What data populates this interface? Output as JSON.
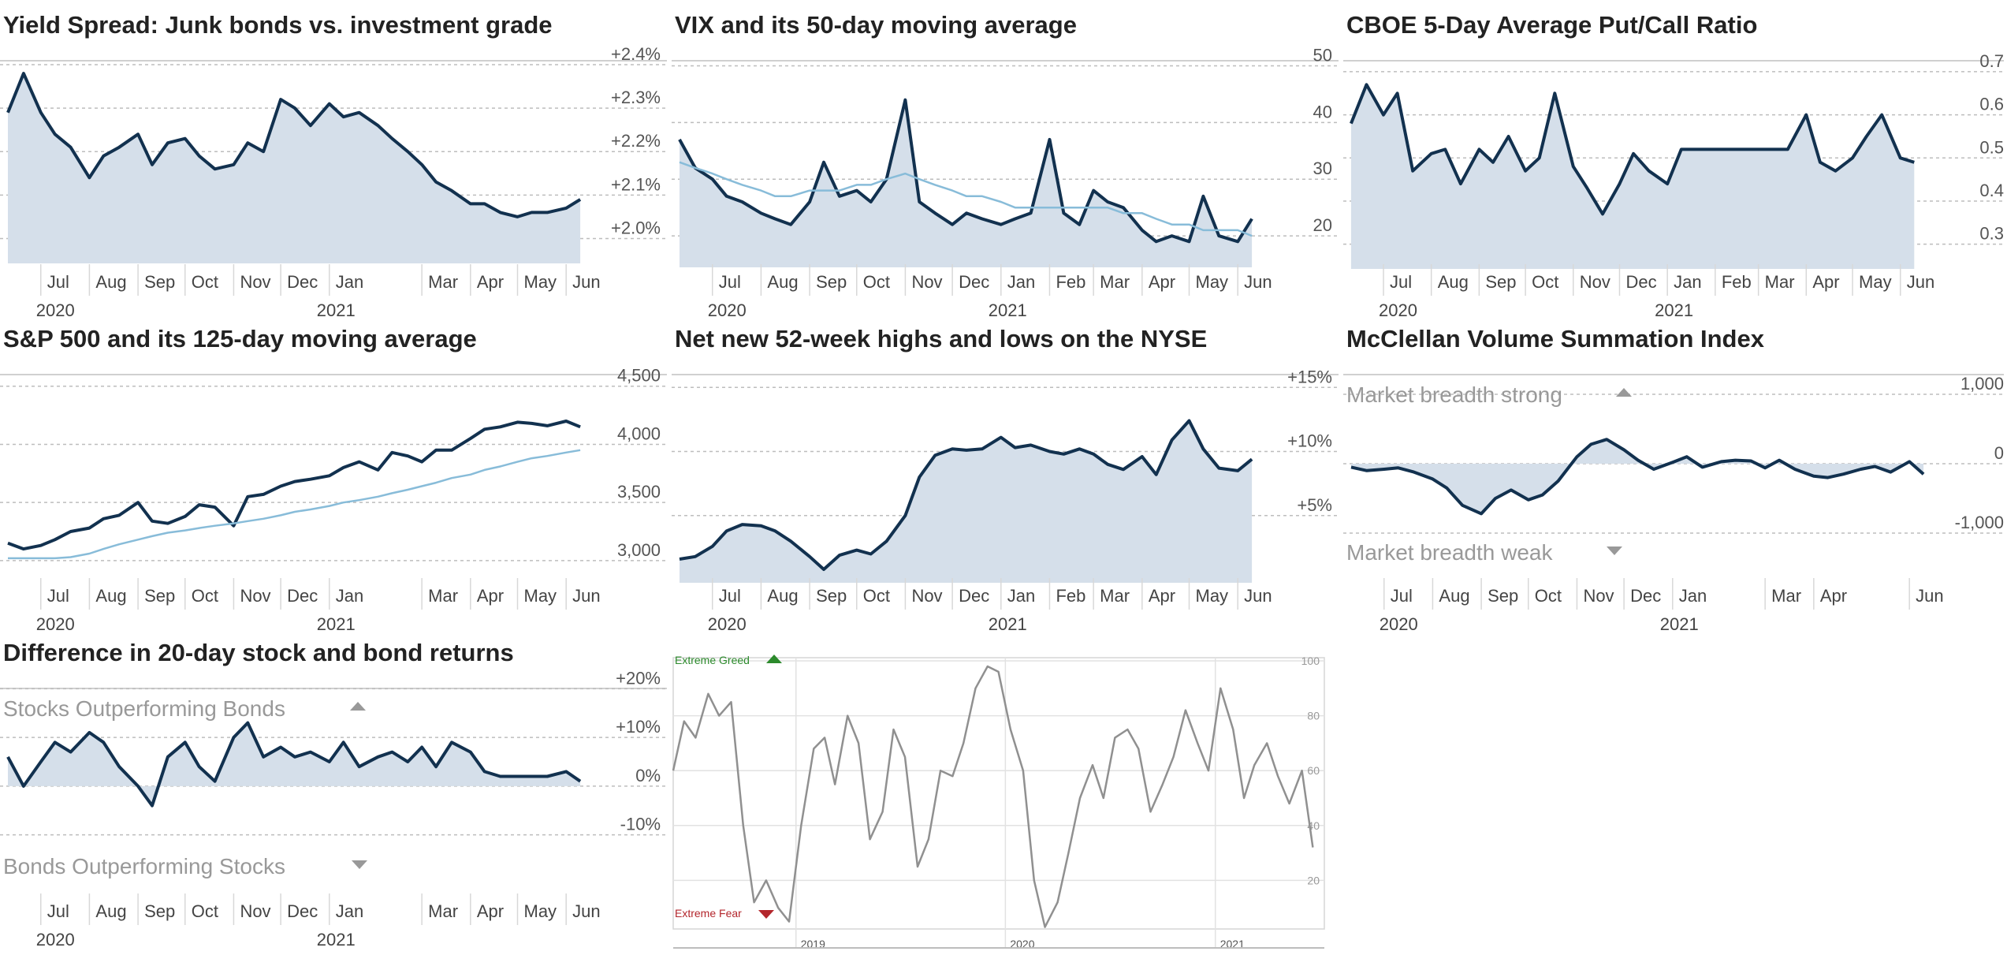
{
  "colors": {
    "line": "#12314f",
    "fill": "#d5dfea",
    "ma": "#88bcd9",
    "fg_line": "#909090",
    "greed": "#2c8a2c",
    "fear": "#b3262c",
    "grid": "#c8c8c8"
  },
  "chart_data": [
    {
      "id": "junk",
      "type": "area",
      "title": "Yield Spread: Junk bonds vs. investment grade",
      "yticks": [
        "+2.4%",
        "+2.3%",
        "+2.2%",
        "+2.1%",
        "+2.0%"
      ],
      "ylim": [
        1.95,
        2.44
      ],
      "xticks": [
        "Jul",
        "Aug",
        "Sep",
        "Oct",
        "Nov",
        "Dec",
        "Jan",
        "Mar",
        "Apr",
        "May",
        "Jun"
      ],
      "year_labels": [
        "2020",
        "2021"
      ],
      "x": [
        "2020-06-10",
        "2020-06-20",
        "2020-07-01",
        "2020-07-10",
        "2020-07-20",
        "2020-08-01",
        "2020-08-10",
        "2020-08-20",
        "2020-09-01",
        "2020-09-10",
        "2020-09-20",
        "2020-10-01",
        "2020-10-10",
        "2020-10-20",
        "2020-11-01",
        "2020-11-10",
        "2020-11-20",
        "2020-12-01",
        "2020-12-10",
        "2020-12-20",
        "2021-01-01",
        "2021-01-10",
        "2021-01-20",
        "2021-02-01",
        "2021-02-10",
        "2021-02-20",
        "2021-03-01",
        "2021-03-10",
        "2021-03-20",
        "2021-04-01",
        "2021-04-10",
        "2021-04-20",
        "2021-05-01",
        "2021-05-10",
        "2021-05-20",
        "2021-06-01",
        "2021-06-10"
      ],
      "values": [
        2.29,
        2.38,
        2.29,
        2.24,
        2.21,
        2.14,
        2.19,
        2.21,
        2.24,
        2.17,
        2.22,
        2.23,
        2.19,
        2.16,
        2.17,
        2.22,
        2.2,
        2.32,
        2.3,
        2.26,
        2.31,
        2.28,
        2.29,
        2.26,
        2.23,
        2.2,
        2.17,
        2.13,
        2.11,
        2.08,
        2.08,
        2.06,
        2.05,
        2.06,
        2.06,
        2.07,
        2.09
      ]
    },
    {
      "id": "vix",
      "type": "line",
      "title": "VIX and its 50-day moving average",
      "yticks": [
        "50",
        "40",
        "30",
        "20"
      ],
      "ylim": [
        15,
        53
      ],
      "xticks": [
        "Jul",
        "Aug",
        "Sep",
        "Oct",
        "Nov",
        "Dec",
        "Jan",
        "Feb",
        "Mar",
        "Apr",
        "May",
        "Jun"
      ],
      "year_labels": [
        "2020",
        "2021"
      ],
      "x": [
        "2020-06-10",
        "2020-06-20",
        "2020-07-01",
        "2020-07-10",
        "2020-07-20",
        "2020-08-01",
        "2020-08-10",
        "2020-08-20",
        "2020-09-01",
        "2020-09-10",
        "2020-09-20",
        "2020-10-01",
        "2020-10-10",
        "2020-10-20",
        "2020-11-01",
        "2020-11-10",
        "2020-11-20",
        "2020-12-01",
        "2020-12-10",
        "2020-12-20",
        "2021-01-01",
        "2021-01-10",
        "2021-01-20",
        "2021-02-01",
        "2021-02-10",
        "2021-02-20",
        "2021-03-01",
        "2021-03-10",
        "2021-03-20",
        "2021-04-01",
        "2021-04-10",
        "2021-04-20",
        "2021-05-01",
        "2021-05-10",
        "2021-05-20",
        "2021-06-01",
        "2021-06-10"
      ],
      "series": [
        {
          "values": [
            37,
            32,
            30,
            27,
            26,
            24,
            23,
            22,
            26,
            33,
            27,
            28,
            26,
            30,
            44,
            26,
            24,
            22,
            24,
            23,
            22,
            23,
            24,
            37,
            24,
            22,
            28,
            26,
            25,
            21,
            19,
            20,
            19,
            27,
            20,
            19,
            23
          ]
        },
        {
          "values": [
            33,
            32,
            31,
            30,
            29,
            28,
            27,
            27,
            28,
            28,
            28,
            29,
            29,
            30,
            31,
            30,
            29,
            28,
            27,
            27,
            26,
            25,
            25,
            25,
            25,
            25,
            25,
            25,
            24,
            24,
            23,
            22,
            22,
            21,
            21,
            21,
            20
          ]
        }
      ]
    },
    {
      "id": "putcall",
      "type": "area",
      "title": "CBOE 5-Day Average Put/Call Ratio",
      "yticks": [
        "0.7",
        "0.6",
        "0.5",
        "0.4",
        "0.3"
      ],
      "ylim": [
        0.25,
        0.72
      ],
      "xticks": [
        "Jul",
        "Aug",
        "Sep",
        "Oct",
        "Nov",
        "Dec",
        "Jan",
        "Feb",
        "Mar",
        "Apr",
        "May",
        "Jun"
      ],
      "year_labels": [
        "2020",
        "2021"
      ],
      "x": [
        "2020-06-10",
        "2020-06-20",
        "2020-07-01",
        "2020-07-10",
        "2020-07-20",
        "2020-08-01",
        "2020-08-10",
        "2020-08-20",
        "2020-09-01",
        "2020-09-10",
        "2020-09-20",
        "2020-10-01",
        "2020-10-10",
        "2020-10-20",
        "2020-11-01",
        "2020-11-10",
        "2020-11-20",
        "2020-12-01",
        "2020-12-10",
        "2020-12-20",
        "2021-01-01",
        "2021-01-10",
        "2021-01-20",
        "2021-02-01",
        "2021-02-10",
        "2021-02-20",
        "2021-03-01",
        "2021-03-10",
        "2021-03-20",
        "2021-04-01",
        "2021-04-10",
        "2021-04-20",
        "2021-05-01",
        "2021-05-10",
        "2021-05-20",
        "2021-06-01",
        "2021-06-10"
      ],
      "values": [
        0.58,
        0.67,
        0.6,
        0.65,
        0.47,
        0.51,
        0.52,
        0.44,
        0.52,
        0.49,
        0.55,
        0.47,
        0.5,
        0.65,
        0.48,
        0.43,
        0.37,
        0.44,
        0.51,
        0.47,
        0.44,
        0.52,
        0.52,
        0.52,
        0.52,
        0.52,
        0.52,
        0.52,
        0.52,
        0.6,
        0.49,
        0.47,
        0.5,
        0.55,
        0.6,
        0.5,
        0.49
      ]
    },
    {
      "id": "sp500",
      "type": "line",
      "title": "S&P 500 and its 125-day moving average",
      "yticks": [
        "4,500",
        "4,000",
        "3,500",
        "3,000"
      ],
      "ylim": [
        2850,
        4600
      ],
      "xticks": [
        "Jul",
        "Aug",
        "Sep",
        "Oct",
        "Nov",
        "Dec",
        "Jan",
        "Mar",
        "Apr",
        "May",
        "Jun"
      ],
      "year_labels": [
        "2020",
        "2021"
      ],
      "x": [
        "2020-06-10",
        "2020-06-20",
        "2020-07-01",
        "2020-07-10",
        "2020-07-20",
        "2020-08-01",
        "2020-08-10",
        "2020-08-20",
        "2020-09-01",
        "2020-09-10",
        "2020-09-20",
        "2020-10-01",
        "2020-10-10",
        "2020-10-20",
        "2020-11-01",
        "2020-11-10",
        "2020-11-20",
        "2020-12-01",
        "2020-12-10",
        "2020-12-20",
        "2021-01-01",
        "2021-01-10",
        "2021-01-20",
        "2021-02-01",
        "2021-02-10",
        "2021-02-20",
        "2021-03-01",
        "2021-03-10",
        "2021-03-20",
        "2021-04-01",
        "2021-04-10",
        "2021-04-20",
        "2021-05-01",
        "2021-05-10",
        "2021-05-20",
        "2021-06-01",
        "2021-06-10"
      ],
      "series": [
        {
          "values": [
            3150,
            3100,
            3130,
            3180,
            3250,
            3280,
            3360,
            3390,
            3500,
            3340,
            3320,
            3380,
            3480,
            3460,
            3300,
            3550,
            3570,
            3640,
            3680,
            3700,
            3730,
            3800,
            3850,
            3780,
            3930,
            3900,
            3850,
            3950,
            3950,
            4050,
            4130,
            4150,
            4190,
            4180,
            4160,
            4200,
            4150
          ]
        },
        {
          "values": [
            3020,
            3020,
            3020,
            3020,
            3030,
            3060,
            3100,
            3140,
            3180,
            3210,
            3240,
            3260,
            3280,
            3300,
            3320,
            3340,
            3360,
            3390,
            3420,
            3440,
            3470,
            3500,
            3520,
            3550,
            3580,
            3610,
            3640,
            3670,
            3710,
            3740,
            3780,
            3810,
            3850,
            3880,
            3900,
            3930,
            3950
          ]
        }
      ]
    },
    {
      "id": "highs_lows",
      "type": "area",
      "title": "Net new 52-week highs and lows on the NYSE",
      "yticks": [
        "+15%",
        "+10%",
        "+5%"
      ],
      "ylim": [
        0,
        16
      ],
      "xticks": [
        "Jul",
        "Aug",
        "Sep",
        "Oct",
        "Nov",
        "Dec",
        "Jan",
        "Feb",
        "Mar",
        "Apr",
        "May",
        "Jun"
      ],
      "year_labels": [
        "2020",
        "2021"
      ],
      "x": [
        "2020-06-10",
        "2020-06-20",
        "2020-07-01",
        "2020-07-10",
        "2020-07-20",
        "2020-08-01",
        "2020-08-10",
        "2020-08-20",
        "2020-09-01",
        "2020-09-10",
        "2020-09-20",
        "2020-10-01",
        "2020-10-10",
        "2020-10-20",
        "2020-11-01",
        "2020-11-10",
        "2020-11-20",
        "2020-12-01",
        "2020-12-10",
        "2020-12-20",
        "2021-01-01",
        "2021-01-10",
        "2021-01-20",
        "2021-02-01",
        "2021-02-10",
        "2021-02-20",
        "2021-03-01",
        "2021-03-10",
        "2021-03-20",
        "2021-04-01",
        "2021-04-10",
        "2021-04-20",
        "2021-05-01",
        "2021-05-10",
        "2021-05-20",
        "2021-06-01",
        "2021-06-10"
      ],
      "values": [
        1.6,
        1.8,
        2.6,
        3.8,
        4.3,
        4.2,
        3.8,
        3.0,
        1.8,
        0.8,
        1.9,
        2.3,
        2.0,
        3.0,
        5.0,
        8.0,
        9.7,
        10.2,
        10.1,
        10.2,
        11.1,
        10.3,
        10.5,
        10.0,
        9.8,
        10.2,
        9.8,
        9.0,
        8.6,
        9.6,
        8.2,
        10.9,
        12.4,
        10.2,
        8.7,
        8.5,
        9.4
      ]
    },
    {
      "id": "mcclellan",
      "type": "area",
      "title": "McClellan Volume Summation Index",
      "yticks": [
        "1,000",
        "0",
        "-1,000"
      ],
      "ylim": [
        -1250,
        1250
      ],
      "annotations": {
        "top": "Market breadth strong",
        "bottom": "Market breadth weak"
      },
      "xticks": [
        "Jul",
        "Aug",
        "Sep",
        "Oct",
        "Nov",
        "Dec",
        "Jan",
        "Mar",
        "Apr",
        "Jun"
      ],
      "year_labels": [
        "2020",
        "2021"
      ],
      "x": [
        "2020-06-10",
        "2020-06-20",
        "2020-07-01",
        "2020-07-10",
        "2020-07-20",
        "2020-08-01",
        "2020-08-10",
        "2020-08-20",
        "2020-09-01",
        "2020-09-10",
        "2020-09-20",
        "2020-10-01",
        "2020-10-10",
        "2020-10-20",
        "2020-11-01",
        "2020-11-10",
        "2020-11-20",
        "2020-12-01",
        "2020-12-10",
        "2020-12-20",
        "2021-01-01",
        "2021-01-10",
        "2021-01-20",
        "2021-02-01",
        "2021-02-10",
        "2021-02-20",
        "2021-03-01",
        "2021-03-10",
        "2021-03-20",
        "2021-04-01",
        "2021-04-10",
        "2021-04-20",
        "2021-05-01",
        "2021-05-10",
        "2021-05-20",
        "2021-06-01",
        "2021-06-10"
      ],
      "values": [
        -50,
        -100,
        -80,
        -60,
        -120,
        -220,
        -350,
        -600,
        -720,
        -500,
        -380,
        -520,
        -450,
        -250,
        100,
        280,
        350,
        200,
        50,
        -80,
        20,
        100,
        -50,
        30,
        50,
        40,
        -60,
        50,
        -80,
        -180,
        -200,
        -150,
        -80,
        -40,
        -120,
        30,
        -150
      ]
    },
    {
      "id": "stock_bond",
      "type": "area",
      "title": "Difference in 20-day stock and bond returns",
      "yticks": [
        "+20%",
        "+10%",
        "0%",
        "-10%"
      ],
      "ylim": [
        -12,
        22
      ],
      "annotations": {
        "top": "Stocks Outperforming Bonds",
        "bottom": "Bonds Outperforming Stocks"
      },
      "xticks": [
        "Jul",
        "Aug",
        "Sep",
        "Oct",
        "Nov",
        "Dec",
        "Jan",
        "Mar",
        "Apr",
        "May",
        "Jun"
      ],
      "year_labels": [
        "2020",
        "2021"
      ],
      "x": [
        "2020-06-10",
        "2020-06-20",
        "2020-07-01",
        "2020-07-10",
        "2020-07-20",
        "2020-08-01",
        "2020-08-10",
        "2020-08-20",
        "2020-09-01",
        "2020-09-10",
        "2020-09-20",
        "2020-10-01",
        "2020-10-10",
        "2020-10-20",
        "2020-11-01",
        "2020-11-10",
        "2020-11-20",
        "2020-12-01",
        "2020-12-10",
        "2020-12-20",
        "2021-01-01",
        "2021-01-10",
        "2021-01-20",
        "2021-02-01",
        "2021-02-10",
        "2021-02-20",
        "2021-03-01",
        "2021-03-10",
        "2021-03-20",
        "2021-04-01",
        "2021-04-10",
        "2021-04-20",
        "2021-05-01",
        "2021-05-10",
        "2021-05-20",
        "2021-06-01",
        "2021-06-10"
      ],
      "values": [
        6,
        0,
        5,
        9,
        7,
        11,
        9,
        4,
        0,
        -4,
        6,
        9,
        4,
        1,
        10,
        13,
        6,
        8,
        6,
        7,
        5,
        9,
        4,
        6,
        7,
        5,
        8,
        4,
        9,
        7,
        3,
        2,
        2,
        2,
        2,
        3,
        1
      ]
    },
    {
      "id": "fear_greed",
      "type": "line",
      "title": "",
      "yticks": [
        "100",
        "80",
        "60",
        "40",
        "20"
      ],
      "ylim": [
        0,
        100
      ],
      "xticks": [
        "2019",
        "2020",
        "2021"
      ],
      "annotations": {
        "top": "Extreme Greed",
        "bottom": "Extreme Fear"
      },
      "x": [
        "2018-06-01",
        "2018-06-20",
        "2018-07-10",
        "2018-08-01",
        "2018-08-20",
        "2018-09-10",
        "2018-10-01",
        "2018-10-20",
        "2018-11-10",
        "2018-12-01",
        "2018-12-20",
        "2019-01-10",
        "2019-02-01",
        "2019-02-20",
        "2019-03-10",
        "2019-04-01",
        "2019-04-20",
        "2019-05-10",
        "2019-06-01",
        "2019-06-20",
        "2019-07-10",
        "2019-08-01",
        "2019-08-20",
        "2019-09-10",
        "2019-10-01",
        "2019-10-20",
        "2019-11-10",
        "2019-12-01",
        "2019-12-20",
        "2020-01-10",
        "2020-02-01",
        "2020-02-20",
        "2020-03-10",
        "2020-04-01",
        "2020-04-20",
        "2020-05-10",
        "2020-06-01",
        "2020-06-20",
        "2020-07-10",
        "2020-08-01",
        "2020-08-20",
        "2020-09-10",
        "2020-10-01",
        "2020-10-20",
        "2020-11-10",
        "2020-12-01",
        "2020-12-20",
        "2021-01-10",
        "2021-02-01",
        "2021-02-20",
        "2021-03-10",
        "2021-04-01",
        "2021-04-20",
        "2021-05-10",
        "2021-06-01",
        "2021-06-20"
      ],
      "values": [
        60,
        78,
        72,
        88,
        80,
        85,
        40,
        12,
        20,
        10,
        5,
        40,
        68,
        72,
        55,
        80,
        70,
        35,
        45,
        75,
        65,
        25,
        35,
        60,
        58,
        70,
        90,
        98,
        96,
        75,
        60,
        20,
        3,
        12,
        30,
        50,
        62,
        50,
        72,
        75,
        68,
        45,
        55,
        65,
        82,
        70,
        60,
        90,
        75,
        50,
        62,
        70,
        58,
        48,
        60,
        32
      ]
    }
  ]
}
